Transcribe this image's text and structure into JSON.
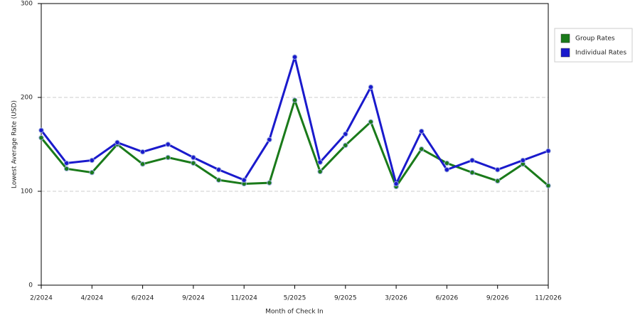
{
  "chart_data": {
    "type": "line",
    "y_label": "Lowest Average Rate (USD)",
    "x_label": "Month of Check In",
    "categories": [
      "2/2024",
      null,
      "4/2024",
      null,
      "6/2024",
      null,
      "9/2024",
      null,
      "11/2024",
      null,
      "5/2025",
      null,
      "9/2025",
      null,
      "3/2026",
      null,
      "6/2026",
      null,
      "9/2026",
      null,
      "11/2026"
    ],
    "series": [
      {
        "name": "Group Rates",
        "color": "#1a7a1a",
        "values": [
          157,
          124,
          120,
          150,
          129,
          136,
          130,
          112,
          108,
          109,
          197,
          121,
          149,
          174,
          105,
          145,
          130,
          120,
          111,
          129,
          106
        ]
      },
      {
        "name": "Individual Rates",
        "color": "#1a1acc",
        "values": [
          165,
          130,
          133,
          152,
          142,
          150,
          136,
          123,
          112,
          155,
          243,
          131,
          161,
          211,
          108,
          164,
          123,
          133,
          123,
          133,
          143
        ]
      }
    ],
    "ylim": [
      0,
      300
    ],
    "yticks": [
      0,
      100,
      200,
      300
    ],
    "grid": true,
    "legend": "right"
  }
}
